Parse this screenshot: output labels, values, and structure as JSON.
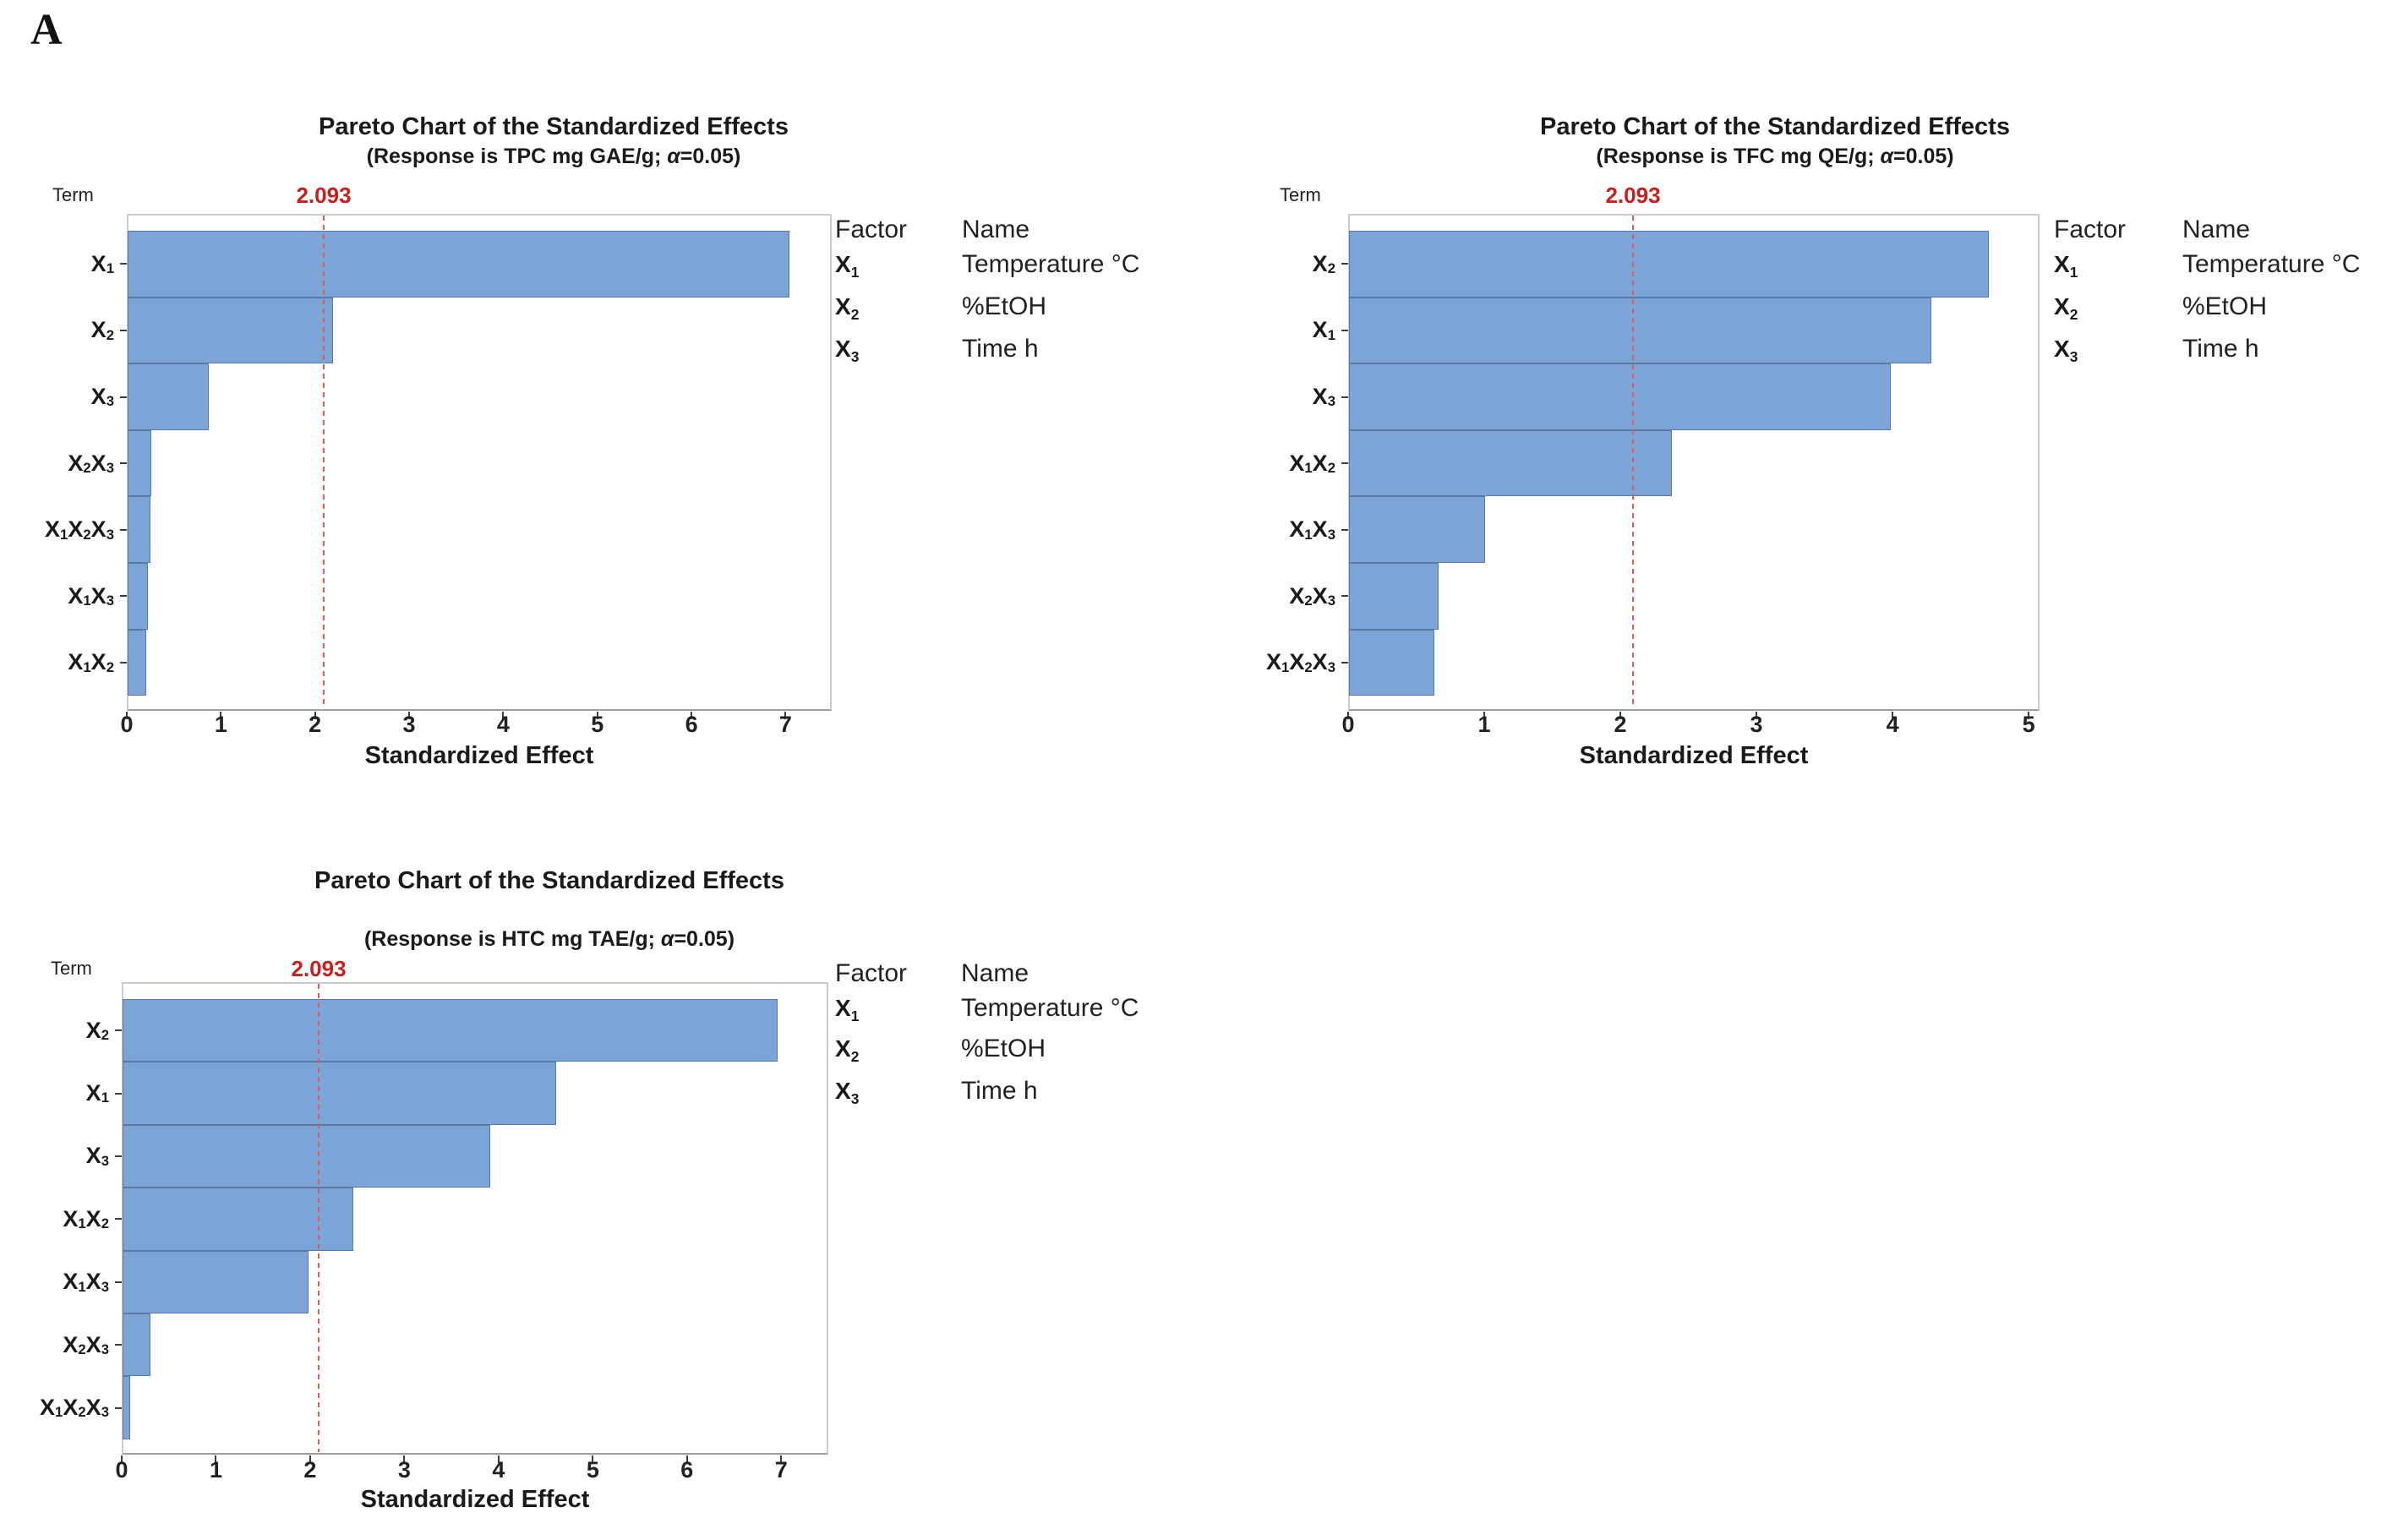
{
  "panel_label": "A",
  "colors": {
    "bar_fill": "#7ba5d7",
    "bar_stroke": "#5a79a4",
    "reference_line": "#e85a50",
    "reference_label": "#c9201d",
    "plot_border": "#c9cdd1",
    "axis_line": "#9aa0a5"
  },
  "legend": {
    "factor_header": "Factor",
    "name_header": "Name",
    "rows": [
      {
        "factor": "X1",
        "name": "Temperature °C"
      },
      {
        "factor": "X2",
        "name": "%EtOH"
      },
      {
        "factor": "X3",
        "name": "Time h"
      }
    ]
  },
  "charts": [
    {
      "id": "tpc",
      "title": "Pareto Chart of the Standardized Effects",
      "subtitle": "(Response is TPC mg GAE/g; α=0.05)",
      "term_axis_label": "Term",
      "x_axis_label": "Standardized Effect",
      "reference_label": "2.093",
      "chart_data": {
        "type": "bar",
        "orientation": "horizontal",
        "title": "Pareto Chart of the Standardized Effects",
        "subtitle": "(Response is TPC mg GAE/g; α=0.05)",
        "xlabel": "Standardized Effect",
        "ylabel": "Term",
        "categories": [
          "X1",
          "X2",
          "X3",
          "X2X3",
          "X1X2X3",
          "X1X3",
          "X1X2"
        ],
        "values": [
          7.03,
          2.18,
          0.86,
          0.25,
          0.24,
          0.22,
          0.2
        ],
        "xticks": [
          0,
          1,
          2,
          3,
          4,
          5,
          6,
          7
        ],
        "xlim": [
          0,
          7.49
        ],
        "reference_line": 2.093,
        "grid": false,
        "legend_position": "right"
      }
    },
    {
      "id": "tfc",
      "title": "Pareto Chart of the Standardized Effects",
      "subtitle": "(Response is TFC mg QE/g; α=0.05)",
      "term_axis_label": "Term",
      "x_axis_label": "Standardized Effect",
      "reference_label": "2.093",
      "chart_data": {
        "type": "bar",
        "orientation": "horizontal",
        "title": "Pareto Chart of the Standardized Effects",
        "subtitle": "(Response is TFC mg QE/g; α=0.05)",
        "xlabel": "Standardized Effect",
        "ylabel": "Term",
        "categories": [
          "X2",
          "X1",
          "X3",
          "X1X2",
          "X1X3",
          "X2X3",
          "X1X2X3"
        ],
        "values": [
          4.7,
          4.28,
          3.98,
          2.37,
          1.0,
          0.66,
          0.63
        ],
        "xticks": [
          0,
          1,
          2,
          3,
          4,
          5
        ],
        "xlim": [
          0,
          5.08
        ],
        "reference_line": 2.093,
        "grid": false,
        "legend_position": "right"
      }
    },
    {
      "id": "htc",
      "title": "Pareto Chart of the Standardized Effects",
      "subtitle": "(Response is HTC mg TAE/g; α=0.05)",
      "term_axis_label": "Term",
      "x_axis_label": "Standardized Effect",
      "reference_label": "2.093",
      "chart_data": {
        "type": "bar",
        "orientation": "horizontal",
        "title": "Pareto Chart of the Standardized Effects",
        "subtitle": "(Response is HTC mg TAE/g; α=0.05)",
        "xlabel": "Standardized Effect",
        "ylabel": "Term",
        "categories": [
          "X2",
          "X1",
          "X3",
          "X1X2",
          "X1X3",
          "X2X3",
          "X1X2X3"
        ],
        "values": [
          6.95,
          4.6,
          3.9,
          2.45,
          1.97,
          0.3,
          0.08
        ],
        "xticks": [
          0,
          1,
          2,
          3,
          4,
          5,
          6,
          7
        ],
        "xlim": [
          0,
          7.5
        ],
        "reference_line": 2.093,
        "grid": false,
        "legend_position": "right"
      }
    }
  ]
}
